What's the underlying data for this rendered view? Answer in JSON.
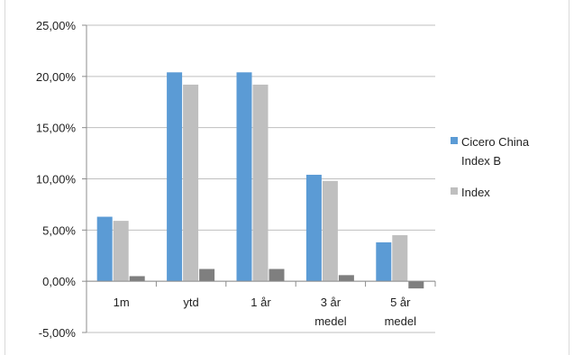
{
  "chart_data": {
    "type": "bar",
    "categories": [
      [
        "1m"
      ],
      [
        "ytd"
      ],
      [
        "1 år"
      ],
      [
        "3 år",
        "medel"
      ],
      [
        "5 år",
        "medel"
      ]
    ],
    "series": [
      {
        "name": "Cicero China Index B",
        "legend_lines": [
          "Cicero China",
          "Index B"
        ],
        "color": "#5B9BD5",
        "values": [
          6.3,
          20.4,
          20.4,
          10.4,
          3.8
        ]
      },
      {
        "name": "Index",
        "legend_lines": [
          "Index"
        ],
        "color": "#BFBFBF",
        "values": [
          5.9,
          19.2,
          19.2,
          9.8,
          4.5
        ]
      },
      {
        "name": "",
        "legend_lines": [],
        "color": "#7F7F7F",
        "values": [
          0.5,
          1.2,
          1.2,
          0.6,
          -0.7
        ]
      }
    ],
    "y_ticks": [
      25,
      20,
      15,
      10,
      5,
      0,
      -5
    ],
    "y_tick_labels": [
      "25,00%",
      "20,00%",
      "15,00%",
      "10,00%",
      "5,00%",
      "0,00%",
      "-5,00%"
    ],
    "ylim": [
      -5,
      25
    ],
    "grid": true,
    "legend_position": "right",
    "title": "",
    "xlabel": "",
    "ylabel": ""
  }
}
